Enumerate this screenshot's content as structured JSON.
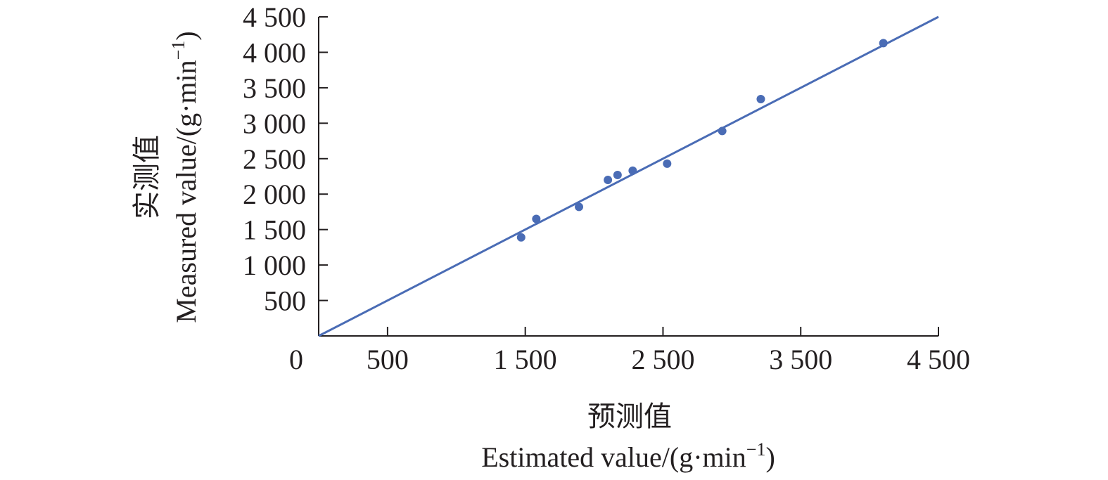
{
  "chart_data": {
    "type": "scatter",
    "xlabel_cn": "预测值",
    "xlabel_en": "Estimated value/(g·min",
    "ylabel_cn": "实测值",
    "ylabel_en": "Measured value/(g·min",
    "unit_exponent": "−1",
    "unit_close": ")",
    "xlim": [
      0,
      4500
    ],
    "ylim": [
      0,
      4500
    ],
    "grid": false,
    "x_ticks": [
      500,
      1500,
      2500,
      3500,
      4500
    ],
    "x_tick_labels": [
      "500",
      "1 500",
      "2 500",
      "3 500",
      "4 500"
    ],
    "y_ticks": [
      500,
      1000,
      1500,
      2000,
      2500,
      3000,
      3500,
      4000,
      4500
    ],
    "y_tick_labels": [
      "500",
      "1 000",
      "1 500",
      "2 000",
      "2 500",
      "3 000",
      "3 500",
      "4 000",
      "4 500"
    ],
    "origin_label": "0",
    "points": [
      {
        "x": 1470,
        "y": 1390
      },
      {
        "x": 1580,
        "y": 1650
      },
      {
        "x": 1890,
        "y": 1820
      },
      {
        "x": 2100,
        "y": 2200
      },
      {
        "x": 2170,
        "y": 2270
      },
      {
        "x": 2280,
        "y": 2330
      },
      {
        "x": 2530,
        "y": 2430
      },
      {
        "x": 2930,
        "y": 2890
      },
      {
        "x": 3210,
        "y": 3340
      },
      {
        "x": 4100,
        "y": 4130
      }
    ],
    "fit_line": {
      "x": [
        0,
        4500
      ],
      "y": [
        0,
        4500
      ]
    },
    "colors": {
      "series": "#4a6cb5",
      "axis": "#231f20"
    }
  }
}
